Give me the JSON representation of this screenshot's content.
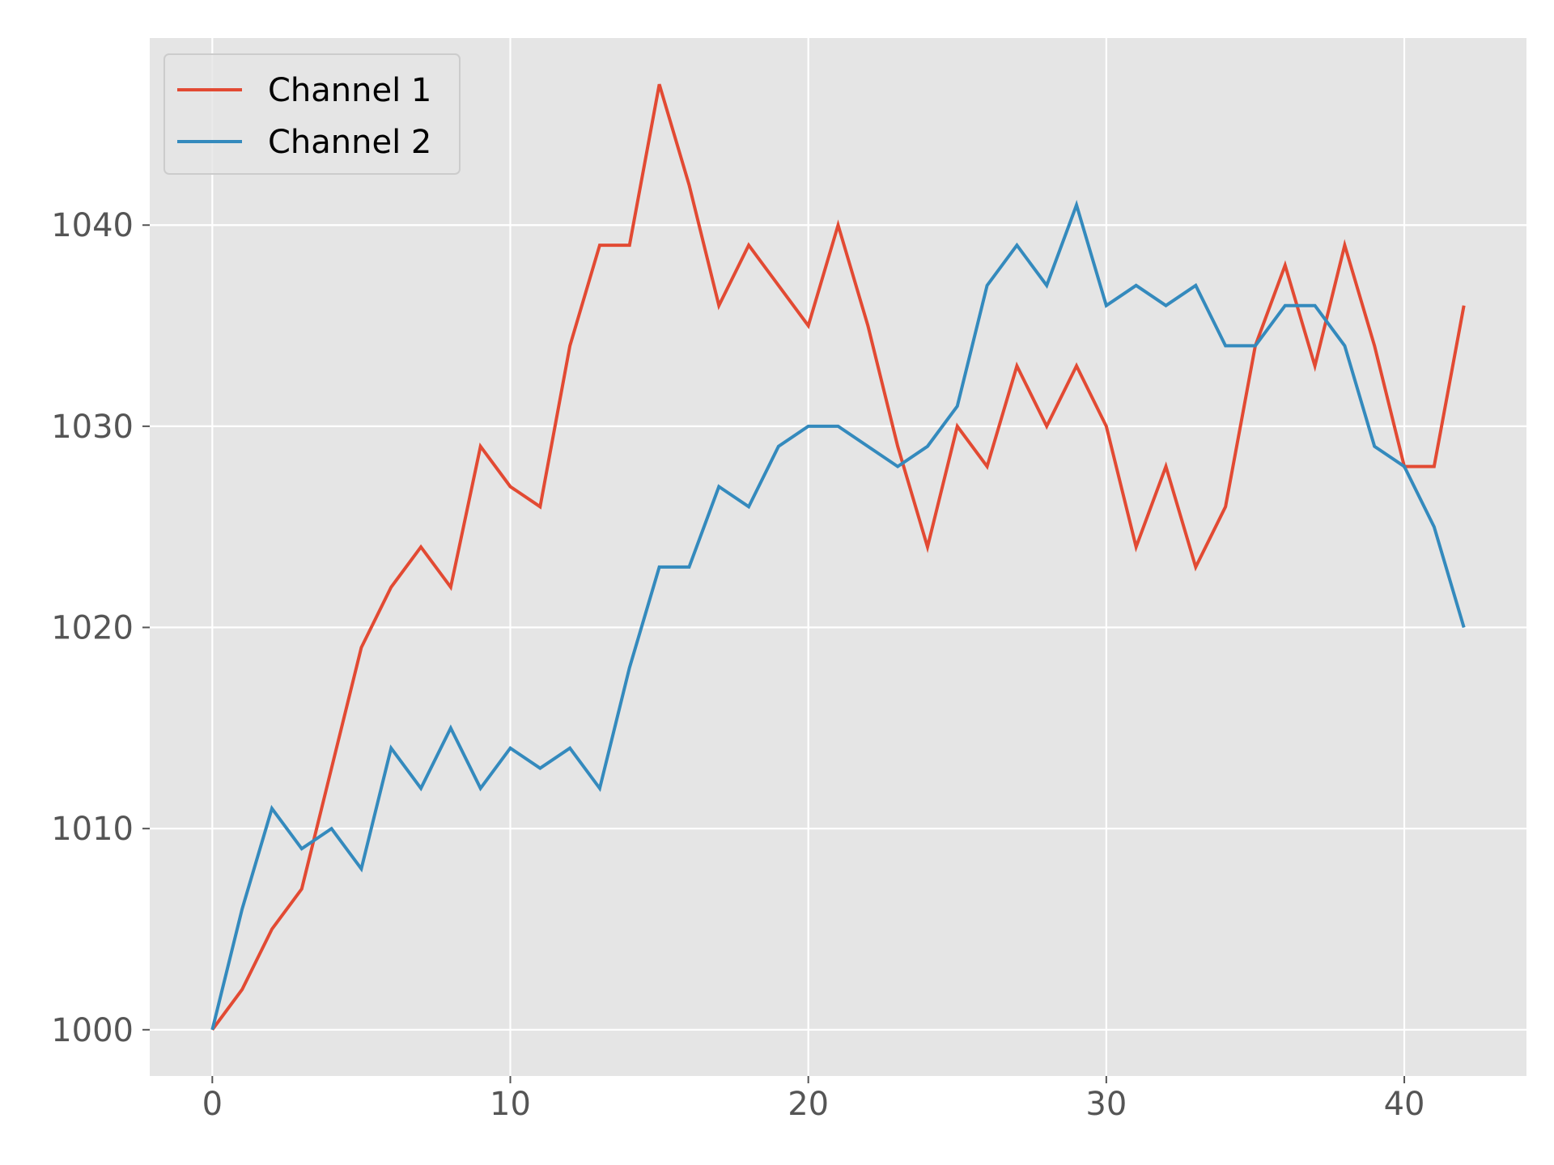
{
  "chart_data": {
    "type": "line",
    "title": "",
    "xlabel": "",
    "ylabel": "",
    "xlim": [
      -2.1,
      44.1
    ],
    "ylim": [
      997.7,
      1049.3
    ],
    "xticks": [
      0,
      10,
      20,
      30,
      40
    ],
    "yticks": [
      1000,
      1010,
      1020,
      1030,
      1040
    ],
    "grid": true,
    "legend_position": "top-left",
    "x": [
      0,
      1,
      2,
      3,
      4,
      5,
      6,
      7,
      8,
      9,
      10,
      11,
      12,
      13,
      14,
      15,
      16,
      17,
      18,
      19,
      20,
      21,
      22,
      23,
      24,
      25,
      26,
      27,
      28,
      29,
      30,
      31,
      32,
      33,
      34,
      35,
      36,
      37,
      38,
      39,
      40,
      41,
      42
    ],
    "series": [
      {
        "name": "Channel 1",
        "color": "#E24A33",
        "values": [
          1000,
          1002,
          1005,
          1007,
          1013,
          1019,
          1022,
          1024,
          1022,
          1029,
          1027,
          1026,
          1034,
          1039,
          1039,
          1047,
          1042,
          1036,
          1039,
          1037,
          1035,
          1040,
          1035,
          1029,
          1024,
          1030,
          1028,
          1033,
          1030,
          1033,
          1030,
          1024,
          1028,
          1023,
          1026,
          1034,
          1038,
          1033,
          1039,
          1034,
          1028,
          1028,
          1036
        ]
      },
      {
        "name": "Channel 2",
        "color": "#348ABD",
        "values": [
          1000,
          1006,
          1011,
          1009,
          1010,
          1008,
          1014,
          1012,
          1015,
          1012,
          1014,
          1013,
          1014,
          1012,
          1018,
          1023,
          1023,
          1027,
          1026,
          1029,
          1030,
          1030,
          1029,
          1028,
          1029,
          1031,
          1037,
          1039,
          1037,
          1041,
          1036,
          1037,
          1036,
          1037,
          1034,
          1034,
          1036,
          1036,
          1034,
          1029,
          1028,
          1025,
          1020
        ]
      }
    ],
    "style": {
      "plot_background": "#E5E5E5",
      "grid_color": "#FFFFFF",
      "tick_color": "#555555"
    }
  }
}
